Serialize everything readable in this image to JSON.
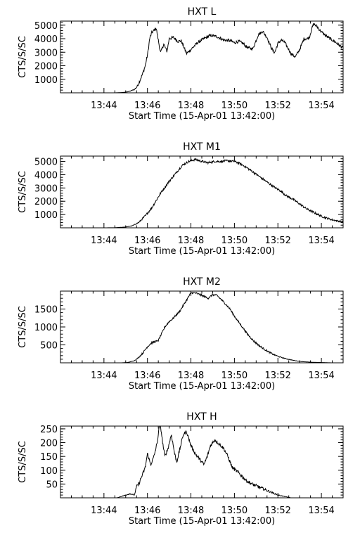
{
  "figure": {
    "background": "#ffffff",
    "foreground": "#000000"
  },
  "chart_data": [
    {
      "type": "line",
      "title": "HXT  L",
      "xlabel": "Start Time (15-Apr-01 13:42:00)",
      "ylabel": "CTS/S/SC",
      "xlim": [
        0,
        13
      ],
      "ylim": [
        0,
        5300
      ],
      "x_ticks": [
        2,
        4,
        6,
        8,
        10,
        12
      ],
      "x_tick_labels": [
        "13:44",
        "13:46",
        "13:48",
        "13:50",
        "13:52",
        "13:54"
      ],
      "y_ticks": [
        1000,
        2000,
        3000,
        4000,
        5000
      ],
      "y_tick_labels": [
        "1000",
        "2000",
        "3000",
        "4000",
        "5000"
      ],
      "grid": false,
      "series": [
        {
          "noise": 110,
          "x": [
            0.5,
            1.0,
            1.5,
            2.0,
            2.5,
            2.8,
            3.0,
            3.2,
            3.4,
            3.5,
            3.6,
            3.7,
            3.8,
            3.9,
            4.0,
            4.05,
            4.1,
            4.2,
            4.3,
            4.4,
            4.5,
            4.6,
            4.75,
            4.9,
            5.0,
            5.2,
            5.4,
            5.55,
            5.8,
            6.0,
            6.3,
            6.6,
            6.9,
            7.2,
            7.5,
            7.8,
            8.0,
            8.2,
            8.4,
            8.55,
            8.7,
            8.85,
            9.1,
            9.3,
            9.5,
            9.7,
            9.85,
            10.0,
            10.15,
            10.3,
            10.45,
            10.6,
            10.8,
            11.0,
            11.2,
            11.35,
            11.45,
            11.55,
            11.65,
            11.8,
            12.0,
            12.3,
            12.6,
            13.0
          ],
          "y": [
            0,
            0,
            0,
            0,
            0,
            20,
            50,
            120,
            250,
            400,
            700,
            1100,
            1500,
            2000,
            2800,
            3300,
            4000,
            4450,
            4600,
            4800,
            3900,
            2950,
            3600,
            3050,
            4000,
            4100,
            3800,
            3850,
            2900,
            3200,
            3700,
            4000,
            4250,
            4150,
            3900,
            3850,
            3700,
            3800,
            3650,
            3400,
            3300,
            3250,
            4300,
            4550,
            4100,
            3300,
            2950,
            3650,
            3900,
            3750,
            3350,
            2900,
            2650,
            3200,
            4000,
            4000,
            4100,
            4700,
            5100,
            4900,
            4500,
            4100,
            3800,
            3300
          ]
        }
      ]
    },
    {
      "type": "line",
      "title": "HXT  M1",
      "xlabel": "Start Time (15-Apr-01 13:42:00)",
      "ylabel": "CTS/S/SC",
      "xlim": [
        0,
        13
      ],
      "ylim": [
        0,
        5400
      ],
      "x_ticks": [
        2,
        4,
        6,
        8,
        10,
        12
      ],
      "x_tick_labels": [
        "13:44",
        "13:46",
        "13:48",
        "13:50",
        "13:52",
        "13:54"
      ],
      "y_ticks": [
        1000,
        2000,
        3000,
        4000,
        5000
      ],
      "y_tick_labels": [
        "1000",
        "2000",
        "3000",
        "4000",
        "5000"
      ],
      "grid": false,
      "series": [
        {
          "noise": 80,
          "x": [
            0.5,
            1.0,
            1.5,
            2.0,
            2.5,
            3.0,
            3.3,
            3.6,
            3.9,
            4.2,
            4.6,
            5.0,
            5.3,
            5.6,
            5.9,
            6.2,
            6.5,
            6.8,
            7.1,
            7.4,
            7.7,
            8.0,
            8.3,
            8.6,
            8.9,
            9.2,
            9.5,
            9.8,
            10.1,
            10.4,
            10.7,
            11.0,
            11.3,
            11.6,
            11.9,
            12.2,
            12.5,
            12.8,
            13.0
          ],
          "y": [
            0,
            0,
            0,
            0,
            10,
            60,
            150,
            400,
            900,
            1500,
            2600,
            3500,
            4100,
            4700,
            5000,
            5150,
            5000,
            4900,
            5000,
            5000,
            5050,
            5000,
            4800,
            4500,
            4150,
            3800,
            3450,
            3100,
            2800,
            2400,
            2150,
            1800,
            1450,
            1200,
            950,
            750,
            600,
            500,
            450
          ]
        }
      ]
    },
    {
      "type": "line",
      "title": "HXT  M2",
      "xlabel": "Start Time (15-Apr-01 13:42:00)",
      "ylabel": "CTS/S/SC",
      "xlim": [
        0,
        13
      ],
      "ylim": [
        0,
        2000
      ],
      "x_ticks": [
        2,
        4,
        6,
        8,
        10,
        12
      ],
      "x_tick_labels": [
        "13:44",
        "13:46",
        "13:48",
        "13:50",
        "13:52",
        "13:54"
      ],
      "y_ticks": [
        500,
        1000,
        1500
      ],
      "y_tick_labels": [
        "500",
        "1000",
        "1500"
      ],
      "grid": false,
      "series": [
        {
          "noise": 25,
          "x": [
            0.5,
            1.0,
            2.0,
            2.8,
            3.1,
            3.4,
            3.6,
            3.8,
            4.0,
            4.2,
            4.5,
            4.8,
            5.0,
            5.2,
            5.5,
            5.8,
            6.0,
            6.2,
            6.5,
            6.8,
            7.0,
            7.2,
            7.5,
            7.8,
            8.0,
            8.3,
            8.6,
            8.9,
            9.2,
            9.5,
            9.8,
            10.1,
            10.4,
            10.7,
            11.0,
            11.3,
            11.6,
            11.9,
            12.2,
            12.5,
            13.0
          ],
          "y": [
            0,
            0,
            0,
            0,
            10,
            60,
            150,
            280,
            450,
            560,
            620,
            1000,
            1150,
            1250,
            1450,
            1750,
            1950,
            1950,
            1880,
            1800,
            1900,
            1880,
            1700,
            1500,
            1300,
            1050,
            800,
            600,
            450,
            330,
            230,
            160,
            110,
            70,
            40,
            25,
            15,
            10,
            5,
            0,
            0
          ]
        }
      ]
    },
    {
      "type": "line",
      "title": "HXT  H",
      "xlabel": "Start Time (15-Apr-01 13:42:00)",
      "ylabel": "CTS/S/SC",
      "xlim": [
        0,
        13
      ],
      "ylim": [
        0,
        260
      ],
      "x_ticks": [
        2,
        4,
        6,
        8,
        10,
        12
      ],
      "x_tick_labels": [
        "13:44",
        "13:46",
        "13:48",
        "13:50",
        "13:52",
        "13:54"
      ],
      "y_ticks": [
        50,
        100,
        150,
        200,
        250
      ],
      "y_tick_labels": [
        "50",
        "100",
        "150",
        "200",
        "250"
      ],
      "grid": false,
      "series": [
        {
          "noise": 6,
          "x": [
            0.5,
            1.0,
            2.0,
            2.6,
            2.8,
            3.0,
            3.2,
            3.4,
            3.5,
            3.6,
            3.75,
            3.9,
            4.0,
            4.15,
            4.3,
            4.45,
            4.55,
            4.62,
            4.7,
            4.8,
            4.95,
            5.1,
            5.25,
            5.35,
            5.5,
            5.65,
            5.8,
            6.0,
            6.2,
            6.4,
            6.6,
            6.75,
            6.9,
            7.1,
            7.3,
            7.5,
            7.7,
            7.9,
            8.2,
            8.5,
            8.8,
            9.1,
            9.4,
            9.7,
            10.0,
            10.3,
            10.6,
            11.0,
            11.5,
            12.0,
            13.0
          ],
          "y": [
            0,
            0,
            0,
            0,
            5,
            10,
            15,
            10,
            40,
            50,
            80,
            110,
            160,
            120,
            150,
            200,
            260,
            250,
            200,
            150,
            180,
            230,
            160,
            130,
            180,
            230,
            240,
            190,
            160,
            140,
            120,
            150,
            190,
            210,
            195,
            180,
            150,
            110,
            90,
            65,
            50,
            40,
            30,
            20,
            10,
            5,
            0,
            0,
            0,
            0,
            0
          ]
        }
      ]
    }
  ]
}
